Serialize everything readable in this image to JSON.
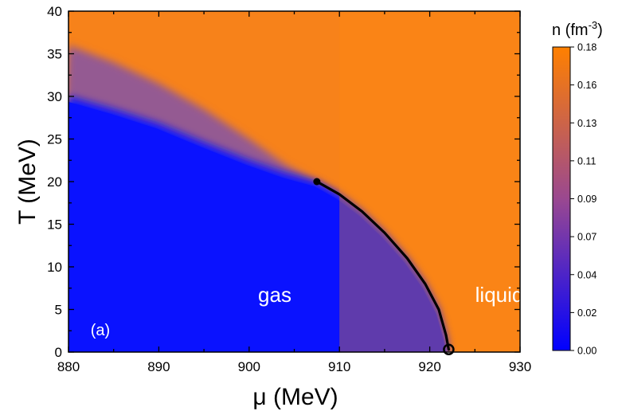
{
  "chart_data": {
    "type": "heatmap",
    "xlabel": "μ (MeV)",
    "ylabel": "T (MeV)",
    "xlim": [
      880,
      930
    ],
    "ylim": [
      0,
      40
    ],
    "x_ticks": [
      "880",
      "890",
      "900",
      "910",
      "920",
      "930"
    ],
    "y_ticks": [
      "0",
      "5",
      "10",
      "15",
      "20",
      "25",
      "30",
      "35",
      "40"
    ],
    "colorbar": {
      "title": "n (fm",
      "title_sup": "-3",
      "title_end": ")",
      "range": [
        0.0,
        0.18
      ],
      "ticks": [
        "0.00",
        "0.02",
        "0.04",
        "0.07",
        "0.09",
        "0.11",
        "0.13",
        "0.16",
        "0.18"
      ],
      "colors": [
        "#0000ff",
        "#ff8000"
      ]
    },
    "phase_boundary": {
      "points": [
        [
          907.5,
          20
        ],
        [
          910,
          18.5
        ],
        [
          912.5,
          16.5
        ],
        [
          915,
          14
        ],
        [
          917.5,
          11
        ],
        [
          919.5,
          8
        ],
        [
          921,
          5
        ],
        [
          921.8,
          2
        ],
        [
          922.1,
          0.3
        ]
      ],
      "critical_point": [
        907.5,
        20
      ],
      "endpoint": [
        922.1,
        0.3
      ]
    },
    "annotations": {
      "gas": "gas",
      "liquid": "liquid",
      "panel": "(a)"
    }
  }
}
